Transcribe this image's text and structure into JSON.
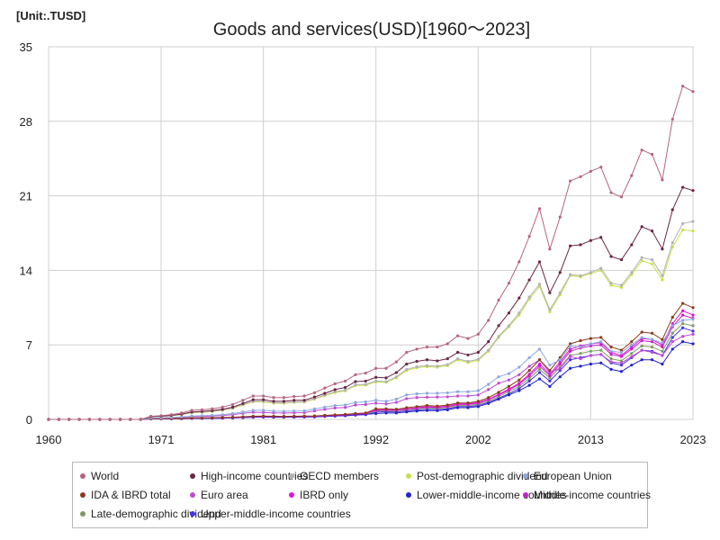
{
  "chart_data": {
    "type": "line",
    "unit_label": "[Unit:.TUSD]",
    "title": "Goods and services(USD)[1960～2023]",
    "xlabel": "",
    "ylabel": "",
    "xlim": [
      1960,
      2023
    ],
    "ylim": [
      0,
      35
    ],
    "x_ticks": [
      1960,
      1971,
      1981,
      1992,
      2002,
      2013,
      2023
    ],
    "y_ticks": [
      0,
      7,
      14,
      21,
      28,
      35
    ],
    "grid": true,
    "legend_position": "bottom",
    "x": [
      1970,
      1971,
      1972,
      1973,
      1974,
      1975,
      1976,
      1977,
      1978,
      1979,
      1980,
      1981,
      1982,
      1983,
      1984,
      1985,
      1986,
      1987,
      1988,
      1989,
      1990,
      1991,
      1992,
      1993,
      1994,
      1995,
      1996,
      1997,
      1998,
      1999,
      2000,
      2001,
      2002,
      2003,
      2004,
      2005,
      2006,
      2007,
      2008,
      2009,
      2010,
      2011,
      2012,
      2013,
      2014,
      2015,
      2016,
      2017,
      2018,
      2019,
      2020,
      2021,
      2022,
      2023
    ],
    "series": [
      {
        "name": "World",
        "color": "#b5657f",
        "values": [
          0.3,
          0.35,
          0.45,
          0.6,
          0.85,
          0.9,
          1.0,
          1.15,
          1.4,
          1.8,
          2.2,
          2.2,
          2.05,
          2.05,
          2.15,
          2.2,
          2.5,
          2.95,
          3.35,
          3.6,
          4.2,
          4.35,
          4.8,
          4.8,
          5.4,
          6.3,
          6.6,
          6.8,
          6.8,
          7.1,
          7.85,
          7.6,
          8.0,
          9.3,
          11.2,
          12.8,
          14.8,
          17.2,
          19.8,
          16.0,
          19.0,
          22.4,
          22.8,
          23.3,
          23.7,
          21.3,
          20.9,
          22.9,
          25.3,
          24.9,
          22.5,
          28.2,
          31.3,
          30.8
        ]
      },
      {
        "name": "High-income countries",
        "color": "#6b2545",
        "values": [
          0.25,
          0.3,
          0.38,
          0.5,
          0.7,
          0.75,
          0.82,
          0.95,
          1.15,
          1.5,
          1.85,
          1.85,
          1.7,
          1.7,
          1.8,
          1.8,
          2.1,
          2.45,
          2.8,
          3.0,
          3.55,
          3.6,
          3.95,
          3.9,
          4.4,
          5.2,
          5.45,
          5.6,
          5.5,
          5.7,
          6.3,
          6.05,
          6.3,
          7.3,
          8.8,
          10.0,
          11.4,
          13.1,
          14.8,
          11.9,
          13.8,
          16.3,
          16.4,
          16.8,
          17.1,
          15.3,
          15.0,
          16.4,
          18.1,
          17.7,
          16.0,
          19.7,
          21.8,
          21.5
        ]
      },
      {
        "name": "OECD members",
        "color": "#b3b3b3",
        "values": [
          0.24,
          0.28,
          0.35,
          0.47,
          0.65,
          0.7,
          0.77,
          0.88,
          1.07,
          1.4,
          1.7,
          1.7,
          1.57,
          1.57,
          1.65,
          1.67,
          1.95,
          2.28,
          2.6,
          2.75,
          3.25,
          3.3,
          3.6,
          3.55,
          4.0,
          4.7,
          4.95,
          5.05,
          5.0,
          5.15,
          5.7,
          5.45,
          5.65,
          6.5,
          7.8,
          8.8,
          10.0,
          11.5,
          12.7,
          10.3,
          11.9,
          13.6,
          13.5,
          13.8,
          14.2,
          12.8,
          12.6,
          13.8,
          15.2,
          15.0,
          13.5,
          16.6,
          18.4,
          18.6
        ]
      },
      {
        "name": "Post-demographic dividend",
        "color": "#c8e04a",
        "values": [
          0.23,
          0.27,
          0.34,
          0.45,
          0.62,
          0.67,
          0.74,
          0.85,
          1.03,
          1.35,
          1.65,
          1.65,
          1.52,
          1.52,
          1.6,
          1.62,
          1.9,
          2.22,
          2.52,
          2.68,
          3.18,
          3.22,
          3.52,
          3.48,
          3.9,
          4.6,
          4.85,
          4.95,
          4.9,
          5.05,
          5.6,
          5.35,
          5.55,
          6.4,
          7.7,
          8.7,
          9.8,
          11.3,
          12.5,
          10.1,
          11.7,
          13.5,
          13.4,
          13.7,
          14.0,
          12.6,
          12.4,
          13.6,
          14.9,
          14.6,
          13.1,
          16.2,
          17.8,
          17.7
        ]
      },
      {
        "name": "European Union",
        "color": "#8ea7e0",
        "values": [
          0.12,
          0.14,
          0.18,
          0.24,
          0.32,
          0.35,
          0.38,
          0.44,
          0.55,
          0.7,
          0.85,
          0.85,
          0.78,
          0.76,
          0.78,
          0.8,
          0.98,
          1.15,
          1.3,
          1.35,
          1.6,
          1.65,
          1.8,
          1.7,
          1.9,
          2.3,
          2.4,
          2.45,
          2.45,
          2.5,
          2.6,
          2.6,
          2.7,
          3.3,
          4.0,
          4.3,
          4.9,
          5.8,
          6.6,
          5.1,
          5.6,
          6.9,
          6.8,
          7.1,
          7.3,
          6.4,
          6.3,
          7.0,
          7.7,
          7.5,
          7.2,
          8.8,
          9.3,
          9.4
        ]
      },
      {
        "name": "IDA & IBRD total",
        "color": "#8b3a1a",
        "values": [
          0.06,
          0.07,
          0.08,
          0.1,
          0.14,
          0.15,
          0.16,
          0.18,
          0.2,
          0.25,
          0.3,
          0.32,
          0.3,
          0.29,
          0.3,
          0.31,
          0.33,
          0.38,
          0.43,
          0.47,
          0.55,
          0.6,
          1.0,
          1.0,
          0.95,
          1.1,
          1.2,
          1.3,
          1.25,
          1.35,
          1.55,
          1.55,
          1.7,
          2.05,
          2.55,
          3.1,
          3.7,
          4.6,
          5.6,
          4.6,
          5.8,
          7.1,
          7.4,
          7.6,
          7.7,
          6.8,
          6.5,
          7.3,
          8.2,
          8.1,
          7.5,
          9.6,
          10.9,
          10.5
        ]
      },
      {
        "name": "Euro area",
        "color": "#c04bd1",
        "values": [
          0.1,
          0.12,
          0.15,
          0.2,
          0.26,
          0.28,
          0.31,
          0.36,
          0.45,
          0.57,
          0.68,
          0.66,
          0.62,
          0.6,
          0.61,
          0.63,
          0.8,
          0.95,
          1.08,
          1.12,
          1.35,
          1.4,
          1.52,
          1.45,
          1.6,
          1.95,
          2.05,
          2.08,
          2.1,
          2.12,
          2.2,
          2.2,
          2.3,
          2.8,
          3.4,
          3.7,
          4.2,
          5.0,
          5.6,
          4.4,
          4.8,
          5.9,
          5.7,
          6.0,
          6.1,
          5.4,
          5.3,
          5.9,
          6.5,
          6.3,
          6.0,
          7.3,
          7.8,
          8.0
        ]
      },
      {
        "name": "IBRD only",
        "color": "#e014d4",
        "values": [
          0.05,
          0.06,
          0.07,
          0.09,
          0.12,
          0.13,
          0.14,
          0.16,
          0.18,
          0.22,
          0.27,
          0.29,
          0.27,
          0.26,
          0.27,
          0.28,
          0.3,
          0.34,
          0.39,
          0.43,
          0.5,
          0.55,
          0.9,
          0.92,
          0.87,
          1.0,
          1.1,
          1.2,
          1.15,
          1.25,
          1.45,
          1.45,
          1.58,
          1.9,
          2.35,
          2.85,
          3.4,
          4.25,
          5.2,
          4.25,
          5.4,
          6.6,
          6.9,
          7.1,
          7.2,
          6.3,
          6.0,
          6.8,
          7.6,
          7.5,
          7.0,
          9.0,
          10.2,
          9.8
        ]
      },
      {
        "name": "Lower-middle-income countries",
        "color": "#2222cc",
        "values": [
          0.04,
          0.05,
          0.06,
          0.07,
          0.1,
          0.11,
          0.12,
          0.13,
          0.15,
          0.18,
          0.22,
          0.24,
          0.22,
          0.22,
          0.23,
          0.24,
          0.26,
          0.3,
          0.34,
          0.37,
          0.43,
          0.47,
          0.55,
          0.6,
          0.6,
          0.7,
          0.78,
          0.84,
          0.82,
          0.9,
          1.1,
          1.1,
          1.2,
          1.5,
          1.9,
          2.3,
          2.7,
          3.2,
          3.8,
          3.1,
          4.0,
          4.8,
          5.0,
          5.2,
          5.3,
          4.7,
          4.5,
          5.1,
          5.6,
          5.6,
          5.2,
          6.6,
          7.3,
          7.1
        ]
      },
      {
        "name": "Middle-income countries",
        "color": "#c81fc8",
        "values": [
          0.05,
          0.06,
          0.07,
          0.09,
          0.12,
          0.13,
          0.14,
          0.16,
          0.18,
          0.22,
          0.27,
          0.29,
          0.27,
          0.26,
          0.27,
          0.28,
          0.3,
          0.34,
          0.39,
          0.43,
          0.5,
          0.55,
          0.85,
          0.88,
          0.85,
          0.97,
          1.06,
          1.15,
          1.12,
          1.2,
          1.4,
          1.4,
          1.52,
          1.85,
          2.3,
          2.75,
          3.3,
          4.1,
          5.0,
          4.1,
          5.2,
          6.4,
          6.7,
          6.9,
          7.0,
          6.1,
          5.9,
          6.6,
          7.4,
          7.3,
          6.8,
          8.7,
          9.8,
          9.5
        ]
      },
      {
        "name": "Late-demographic dividend",
        "color": "#7f9a65",
        "values": [
          0.05,
          0.06,
          0.07,
          0.08,
          0.11,
          0.12,
          0.13,
          0.15,
          0.17,
          0.21,
          0.25,
          0.27,
          0.25,
          0.24,
          0.25,
          0.26,
          0.28,
          0.32,
          0.36,
          0.4,
          0.47,
          0.52,
          0.8,
          0.82,
          0.8,
          0.92,
          1.0,
          1.08,
          1.05,
          1.12,
          1.3,
          1.3,
          1.42,
          1.72,
          2.15,
          2.6,
          3.1,
          3.85,
          4.7,
          3.9,
          4.9,
          6.0,
          6.2,
          6.4,
          6.5,
          5.7,
          5.5,
          6.2,
          6.9,
          6.8,
          6.4,
          8.1,
          9.0,
          8.8
        ]
      },
      {
        "name": "Upper-middle-income countries",
        "color": "#4433dd",
        "values": [
          0.04,
          0.05,
          0.06,
          0.07,
          0.09,
          0.1,
          0.11,
          0.12,
          0.14,
          0.17,
          0.2,
          0.22,
          0.2,
          0.2,
          0.21,
          0.22,
          0.23,
          0.27,
          0.31,
          0.34,
          0.4,
          0.44,
          0.7,
          0.72,
          0.7,
          0.8,
          0.88,
          0.95,
          0.93,
          1.0,
          1.2,
          1.2,
          1.3,
          1.6,
          2.0,
          2.4,
          2.9,
          3.6,
          4.4,
          3.6,
          4.6,
          5.6,
          5.8,
          6.0,
          6.1,
          5.3,
          5.1,
          5.8,
          6.5,
          6.4,
          6.0,
          7.7,
          8.6,
          8.3
        ]
      }
    ]
  }
}
